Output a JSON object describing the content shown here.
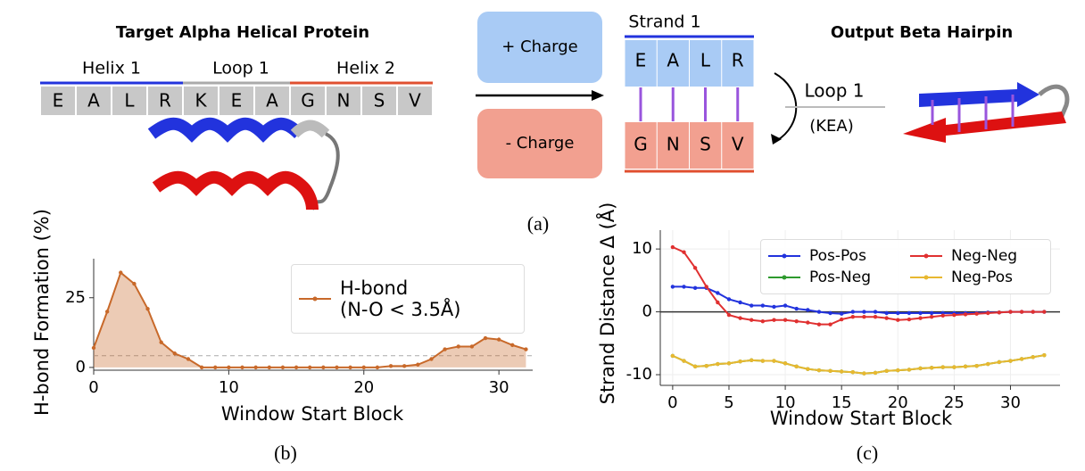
{
  "diagram": {
    "left_title": "Target Alpha Helical Protein",
    "segments": [
      "Helix 1",
      "Loop 1",
      "Helix 2"
    ],
    "sequence": [
      "E",
      "A",
      "L",
      "R",
      "K",
      "E",
      "A",
      "G",
      "N",
      "S",
      "V"
    ],
    "positive_label": "+ Charge",
    "negative_label": "- Charge",
    "strand_label": "Strand 1",
    "strand_top": [
      "E",
      "A",
      "L",
      "R"
    ],
    "strand_bottom": [
      "G",
      "N",
      "S",
      "V"
    ],
    "loop_label": "Loop 1",
    "loop_sequence": "(KEA)",
    "right_title": "Output Beta Hairpin",
    "panel_labels": [
      "(a)",
      "(b)",
      "(c)"
    ]
  },
  "chart_data": [
    {
      "type": "area",
      "xlabel": "Window Start Block",
      "ylabel": "H-bond Formation (%)",
      "x": [
        0,
        1,
        2,
        3,
        4,
        5,
        6,
        7,
        8,
        9,
        10,
        11,
        12,
        13,
        14,
        15,
        16,
        17,
        18,
        19,
        20,
        21,
        22,
        23,
        24,
        25,
        26,
        27,
        28,
        29,
        30,
        31,
        32
      ],
      "series": [
        {
          "name": "H-bond\n(N-O < 3.5Å)",
          "color": "#c8692a",
          "values": [
            7,
            20,
            34,
            30,
            21,
            9,
            5,
            3,
            0,
            0,
            0,
            0,
            0,
            0,
            0,
            0,
            0,
            0,
            0,
            0,
            0,
            0,
            0.5,
            0.5,
            1,
            3,
            6.5,
            7.5,
            7.5,
            10.5,
            10,
            8,
            6.5
          ]
        }
      ],
      "hline": 4.2,
      "hline_color": "#aaaaaa",
      "xlim": [
        0,
        32.5
      ],
      "ylim": [
        -1,
        39
      ],
      "xticks": [
        0,
        10,
        20,
        30
      ],
      "yticks": [
        0,
        25
      ],
      "grid": false,
      "legend": "upper right"
    },
    {
      "type": "line",
      "xlabel": "Window Start Block",
      "ylabel": "Strand Distance Δ (Å)",
      "x": [
        0,
        1,
        2,
        3,
        4,
        5,
        6,
        7,
        8,
        9,
        10,
        11,
        12,
        13,
        14,
        15,
        16,
        17,
        18,
        19,
        20,
        21,
        22,
        23,
        24,
        25,
        26,
        27,
        28,
        29,
        30,
        31,
        32,
        33
      ],
      "series": [
        {
          "name": "Pos-Pos",
          "color": "#2233dd",
          "values": [
            4,
            4,
            3.8,
            3.8,
            3,
            2,
            1.5,
            1,
            1,
            0.8,
            1,
            0.5,
            0.3,
            0,
            -0.2,
            -0.3,
            0,
            0,
            0,
            -0.2,
            -0.2,
            -0.2,
            -0.2,
            -0.2,
            -0.2,
            -0.2,
            -0.2,
            -0.2,
            -0.1,
            -0.1,
            0,
            0,
            0,
            0
          ]
        },
        {
          "name": "Neg-Neg",
          "color": "#e03030",
          "values": [
            10.3,
            9.5,
            7,
            4,
            1.5,
            -0.5,
            -1,
            -1.3,
            -1.5,
            -1.3,
            -1.3,
            -1.5,
            -1.7,
            -2,
            -2,
            -1.2,
            -0.8,
            -0.8,
            -0.8,
            -1,
            -1.3,
            -1.2,
            -1,
            -0.8,
            -0.6,
            -0.5,
            -0.4,
            -0.3,
            -0.2,
            -0.1,
            0,
            0,
            0,
            0
          ]
        },
        {
          "name": "Pos-Neg",
          "color": "#2e9a2e",
          "values": [
            -7,
            -7.8,
            -8.7,
            -8.6,
            -8.3,
            -8.2,
            -7.9,
            -7.7,
            -7.8,
            -7.8,
            -8.2,
            -8.7,
            -9.1,
            -9.3,
            -9.4,
            -9.5,
            -9.6,
            -9.8,
            -9.7,
            -9.4,
            -9.3,
            -9.2,
            -9,
            -8.9,
            -8.8,
            -8.8,
            -8.7,
            -8.6,
            -8.3,
            -8,
            -7.8,
            -7.5,
            -7.2,
            -6.9
          ]
        },
        {
          "name": "Neg-Pos",
          "color": "#e8b830",
          "values": [
            -7,
            -7.8,
            -8.7,
            -8.6,
            -8.3,
            -8.2,
            -7.9,
            -7.7,
            -7.8,
            -7.8,
            -8.2,
            -8.7,
            -9.1,
            -9.3,
            -9.4,
            -9.5,
            -9.6,
            -9.8,
            -9.7,
            -9.4,
            -9.3,
            -9.2,
            -9,
            -8.9,
            -8.8,
            -8.8,
            -8.7,
            -8.6,
            -8.3,
            -8,
            -7.8,
            -7.5,
            -7.2,
            -6.9
          ]
        }
      ],
      "hline": 0,
      "hline_color": "#333333",
      "xlim": [
        -1.1,
        34.4
      ],
      "ylim": [
        -11.7,
        13
      ],
      "xticks": [
        0,
        5,
        10,
        15,
        20,
        25,
        30
      ],
      "yticks": [
        -10,
        0,
        10
      ],
      "grid": true,
      "legend": "upper right"
    }
  ]
}
